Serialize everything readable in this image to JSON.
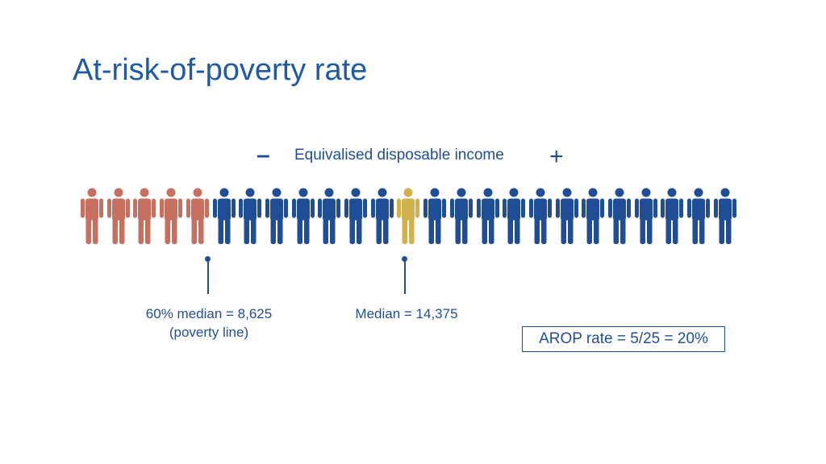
{
  "title": "At-risk-of-poverty rate",
  "axis": {
    "minus_symbol": "–",
    "label": "Equivalised disposable income",
    "plus_symbol": "+"
  },
  "colors": {
    "title": "#1f5aa6",
    "text": "#1f4e96",
    "at_risk": "#c8705f",
    "median": "#d2b04c",
    "other": "#1f4e96"
  },
  "people": {
    "total": 25,
    "at_risk_count": 5,
    "median_position": 13
  },
  "markers": {
    "poverty_line": {
      "line1": "60% median = 8,625",
      "line2": "(poverty line)"
    },
    "median": {
      "line1": "Median = 14,375"
    }
  },
  "arop_label": "AROP rate = 5/25 = 20%"
}
